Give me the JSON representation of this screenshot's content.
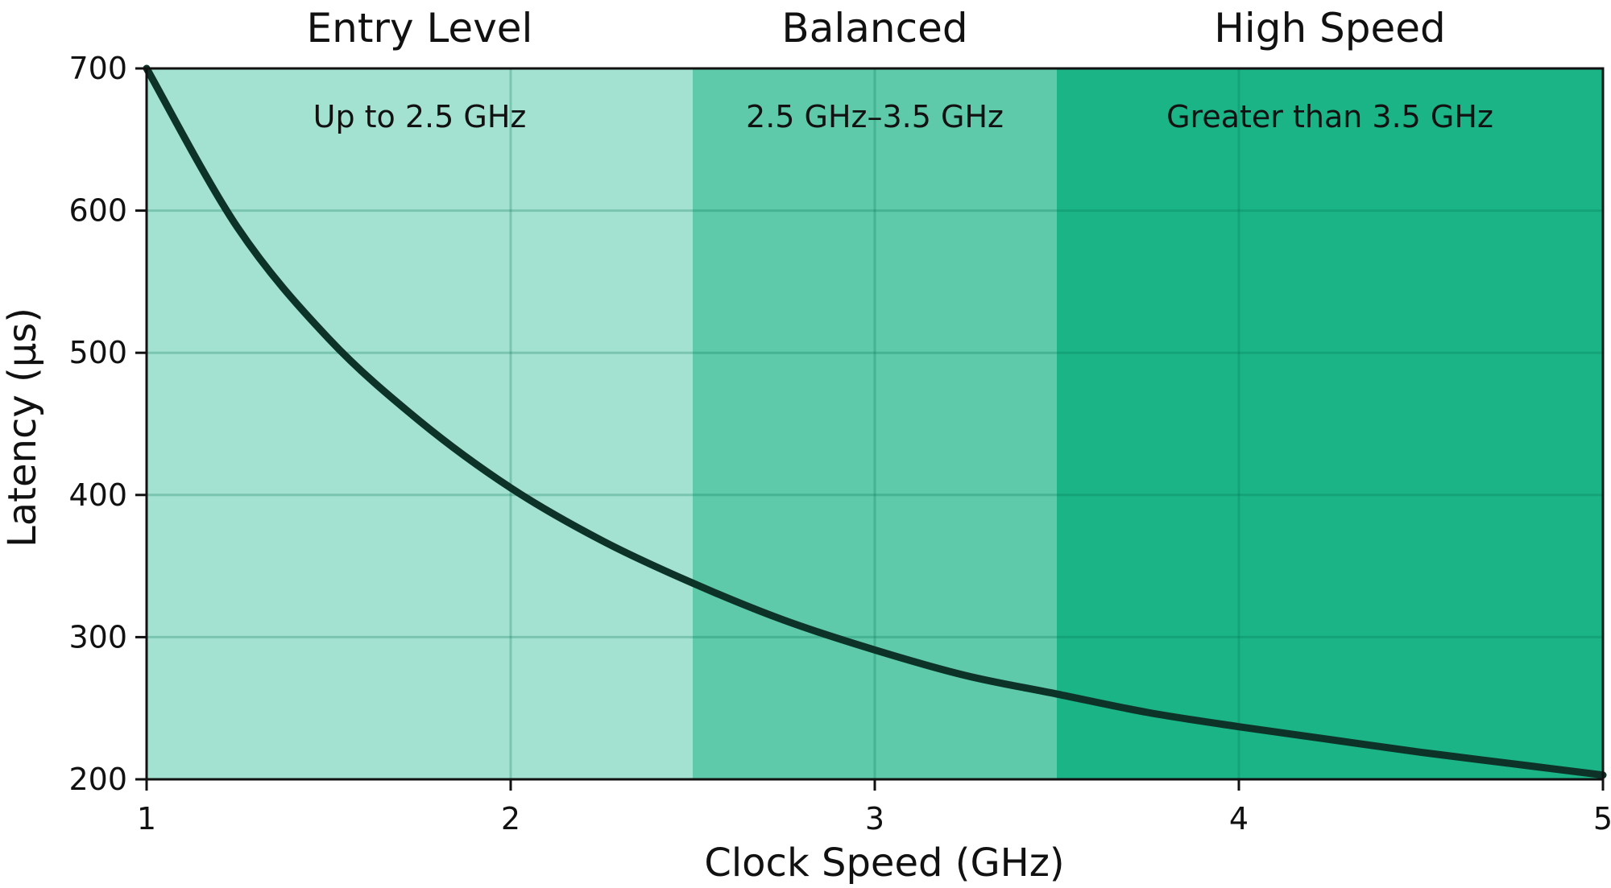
{
  "chart_data": {
    "type": "line",
    "title": "",
    "xlabel": "Clock Speed (GHz)",
    "ylabel": "Latency (μs)",
    "xlim": [
      1,
      5
    ],
    "ylim": [
      200,
      700
    ],
    "x_ticks": [
      "1",
      "2",
      "3",
      "4",
      "5"
    ],
    "y_ticks": [
      "200",
      "300",
      "400",
      "500",
      "600",
      "700"
    ],
    "grid": true,
    "regions": [
      {
        "title": "Entry Level",
        "subtitle": "Up to 2.5 GHz",
        "x_start": 1,
        "x_end": 2.5,
        "color": "#a3e2d1"
      },
      {
        "title": "Balanced",
        "subtitle": "2.5 GHz–3.5 GHz",
        "x_start": 2.5,
        "x_end": 3.5,
        "color": "#5ecaaa"
      },
      {
        "title": "High Speed",
        "subtitle": "Greater than 3.5 GHz",
        "x_start": 3.5,
        "x_end": 5,
        "color": "#1bb487"
      }
    ],
    "series": [
      {
        "color": "#0d3328",
        "x": [
          1,
          1.25,
          1.5,
          1.75,
          2,
          2.25,
          2.5,
          2.75,
          3,
          3.25,
          3.5,
          3.75,
          4,
          4.25,
          4.5,
          4.75,
          5
        ],
        "y": [
          700,
          588,
          510,
          452,
          405,
          368,
          338,
          312,
          291,
          273,
          260,
          247,
          237,
          228,
          219,
          211,
          203
        ]
      }
    ]
  }
}
